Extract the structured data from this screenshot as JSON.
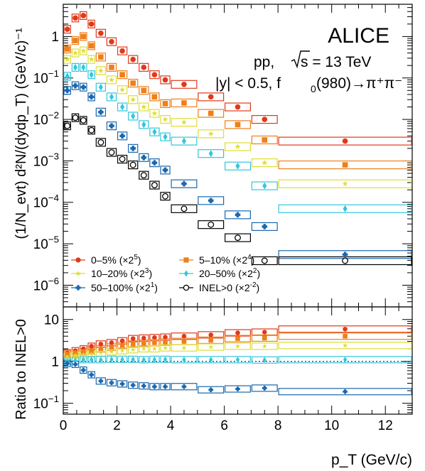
{
  "chart_data": [
    {
      "type": "scatter",
      "panel": "top",
      "yscale": "log",
      "ylabel": "(1/N_evt) d²N/(dydp_T) (GeV/c)⁻¹",
      "xlim": [
        0,
        13
      ],
      "ylim": [
        3e-07,
        6
      ],
      "yticks": [
        {
          "v": 1e-06,
          "label": "10",
          "exp": "−6"
        },
        {
          "v": 1e-05,
          "label": "10",
          "exp": "−5"
        },
        {
          "v": 0.0001,
          "label": "10",
          "exp": "−4"
        },
        {
          "v": 0.001,
          "label": "10",
          "exp": "−3"
        },
        {
          "v": 0.01,
          "label": "10",
          "exp": "−2"
        },
        {
          "v": 0.1,
          "label": "10",
          "exp": "−1"
        },
        {
          "v": 1,
          "label": "1",
          "exp": ""
        }
      ],
      "annotations": {
        "experiment": "ALICE",
        "system": "pp,",
        "sqrt_s": "s = 13 TeV",
        "rapidity": "|y| < 0.5, f",
        "rapidity_sub": "0",
        "decay": "(980)→π⁺π⁻"
      },
      "bins": [
        [
          0,
          0.3
        ],
        [
          0.3,
          0.6
        ],
        [
          0.6,
          0.9
        ],
        [
          0.9,
          1.2
        ],
        [
          1.2,
          1.6
        ],
        [
          1.6,
          2.0
        ],
        [
          2.0,
          2.4
        ],
        [
          2.4,
          2.8
        ],
        [
          2.8,
          3.2
        ],
        [
          3.2,
          3.6
        ],
        [
          3.6,
          4.0
        ],
        [
          4.0,
          5.0
        ],
        [
          5.0,
          6.0
        ],
        [
          6.0,
          7.0
        ],
        [
          7.0,
          8.0
        ],
        [
          8.0,
          13.0
        ]
      ],
      "legend": {
        "position": "bottom-left",
        "columns": 2
      },
      "series": [
        {
          "name": "0–5%",
          "scale": "(×2",
          "exp": "5",
          "marker": "circle",
          "color": "#e0391a",
          "x": [
            0.15,
            0.45,
            0.75,
            1.05,
            1.4,
            1.8,
            2.2,
            2.6,
            3.0,
            3.4,
            3.8,
            4.5,
            5.5,
            6.5,
            7.5,
            10.5
          ],
          "y": [
            1.5,
            2.8,
            3.2,
            2.0,
            1.2,
            0.75,
            0.45,
            0.28,
            0.18,
            0.12,
            0.09,
            0.07,
            0.035,
            0.02,
            0.01,
            0.003
          ]
        },
        {
          "name": "5–10%",
          "scale": "(×2",
          "exp": "4",
          "marker": "square",
          "color": "#ee7f19",
          "x": [
            0.15,
            0.45,
            0.75,
            1.05,
            1.4,
            1.8,
            2.2,
            2.6,
            3.0,
            3.4,
            3.8,
            4.5,
            5.5,
            6.5,
            7.5,
            10.5
          ],
          "y": [
            0.5,
            0.8,
            1.0,
            0.6,
            0.32,
            0.18,
            0.12,
            0.075,
            0.05,
            0.035,
            0.024,
            0.025,
            0.014,
            0.0075,
            0.0032,
            0.0008
          ]
        },
        {
          "name": "10–20%",
          "scale": "(×2",
          "exp": "3",
          "marker": "star",
          "color": "#dddd33",
          "x": [
            0.15,
            0.45,
            0.75,
            1.05,
            1.4,
            1.8,
            2.2,
            2.6,
            3.0,
            3.4,
            3.8,
            4.5,
            5.5,
            6.5,
            7.5,
            10.5
          ],
          "y": [
            0.28,
            0.4,
            0.45,
            0.28,
            0.15,
            0.09,
            0.052,
            0.03,
            0.02,
            0.014,
            0.01,
            0.0085,
            0.0045,
            0.0022,
            0.0009,
            0.00028
          ]
        },
        {
          "name": "20–50%",
          "scale": "(×2",
          "exp": "2",
          "marker": "diamond",
          "color": "#33c6dd",
          "x": [
            0.15,
            0.45,
            0.75,
            1.05,
            1.4,
            1.8,
            2.2,
            2.6,
            3.0,
            3.4,
            3.8,
            4.5,
            5.5,
            6.5,
            7.5,
            10.5
          ],
          "y": [
            0.11,
            0.18,
            0.18,
            0.12,
            0.06,
            0.035,
            0.02,
            0.012,
            0.0075,
            0.005,
            0.0038,
            0.003,
            0.0015,
            0.00075,
            0.00025,
            7e-05
          ]
        },
        {
          "name": "50–100%",
          "scale": "(×2",
          "exp": "1",
          "marker": "cross",
          "color": "#1a67ad",
          "x": [
            0.15,
            0.45,
            0.75,
            1.05,
            1.4,
            1.8,
            2.2,
            2.6,
            3.0,
            3.4,
            3.8,
            4.5,
            5.5,
            6.5,
            7.5,
            10.5
          ],
          "y": [
            0.05,
            0.065,
            0.06,
            0.035,
            0.015,
            0.007,
            0.004,
            0.002,
            0.0012,
            0.0009,
            0.0006,
            0.00028,
            0.00011,
            5e-05,
            2.6e-05,
            5.5e-06
          ]
        },
        {
          "name": "INEL>0",
          "scale": "(×2",
          "exp": "-2",
          "marker": "open-circle",
          "color": "#000000",
          "x": [
            0.15,
            0.45,
            0.75,
            1.05,
            1.4,
            1.8,
            2.2,
            2.6,
            3.0,
            3.4,
            3.8,
            4.5,
            5.5,
            6.5,
            7.5,
            10.5
          ],
          "y": [
            0.007,
            0.011,
            0.0095,
            0.0055,
            0.0028,
            0.0016,
            0.0011,
            0.0008,
            0.00045,
            0.00026,
            0.00014,
            7e-05,
            2.9e-05,
            1.4e-05,
            3.9e-06,
            3.9e-06
          ]
        }
      ]
    },
    {
      "type": "scatter",
      "panel": "bottom",
      "yscale": "log",
      "xlabel": "p_T (GeV/c)",
      "ylabel": "Ratio to INEL>0",
      "xlim": [
        0,
        13
      ],
      "ylim": [
        0.055,
        20
      ],
      "xticks": [
        0,
        2,
        4,
        6,
        8,
        10,
        12
      ],
      "yticks": [
        {
          "v": 0.1,
          "label": "10",
          "exp": "−1"
        },
        {
          "v": 1,
          "label": "1",
          "exp": ""
        },
        {
          "v": 10,
          "label": "10",
          "exp": ""
        }
      ],
      "reference_line": 1,
      "series": [
        {
          "name": "0–5%",
          "color": "#e0391a",
          "marker": "circle",
          "x": [
            0.15,
            0.45,
            0.75,
            1.05,
            1.4,
            1.8,
            2.2,
            2.6,
            3.0,
            3.4,
            3.8,
            4.5,
            5.5,
            6.5,
            7.5,
            10.5
          ],
          "y": [
            1.6,
            1.8,
            2.0,
            2.3,
            2.6,
            2.8,
            3.1,
            3.5,
            3.6,
            3.7,
            3.8,
            4.0,
            4.3,
            4.8,
            5.0,
            5.9
          ]
        },
        {
          "name": "5–10%",
          "color": "#ee7f19",
          "marker": "square",
          "x": [
            0.15,
            0.45,
            0.75,
            1.05,
            1.4,
            1.8,
            2.2,
            2.6,
            3.0,
            3.4,
            3.8,
            4.5,
            5.5,
            6.5,
            7.5,
            10.5
          ],
          "y": [
            1.5,
            1.6,
            1.7,
            1.8,
            2.0,
            2.2,
            2.4,
            2.6,
            2.7,
            2.8,
            2.9,
            3.0,
            3.2,
            3.5,
            3.6,
            4.0
          ]
        },
        {
          "name": "10–20%",
          "color": "#dddd33",
          "marker": "star",
          "x": [
            0.15,
            0.45,
            0.75,
            1.05,
            1.4,
            1.8,
            2.2,
            2.6,
            3.0,
            3.4,
            3.8,
            4.5,
            5.5,
            6.5,
            7.5,
            10.5
          ],
          "y": [
            1.3,
            1.4,
            1.45,
            1.5,
            1.6,
            1.7,
            1.8,
            1.9,
            2.0,
            2.0,
            2.1,
            2.1,
            2.2,
            2.3,
            2.3,
            2.4
          ]
        },
        {
          "name": "20–50%",
          "color": "#33c6dd",
          "marker": "diamond",
          "x": [
            0.15,
            0.45,
            0.75,
            1.05,
            1.4,
            1.8,
            2.2,
            2.6,
            3.0,
            3.4,
            3.8,
            4.5,
            5.5,
            6.5,
            7.5,
            10.5
          ],
          "y": [
            1.0,
            1.05,
            1.1,
            1.1,
            1.1,
            1.12,
            1.12,
            1.12,
            1.1,
            1.12,
            1.12,
            1.1,
            1.1,
            1.1,
            1.08,
            1.1
          ]
        },
        {
          "name": "50–100%",
          "color": "#1a67ad",
          "marker": "cross",
          "x": [
            0.15,
            0.45,
            0.75,
            1.05,
            1.4,
            1.8,
            2.2,
            2.6,
            3.0,
            3.4,
            3.8,
            4.5,
            5.5,
            6.5,
            7.5,
            10.5
          ],
          "y": [
            0.9,
            0.85,
            0.62,
            0.48,
            0.34,
            0.31,
            0.29,
            0.27,
            0.26,
            0.25,
            0.25,
            0.25,
            0.21,
            0.22,
            0.23,
            0.19
          ]
        }
      ]
    }
  ]
}
